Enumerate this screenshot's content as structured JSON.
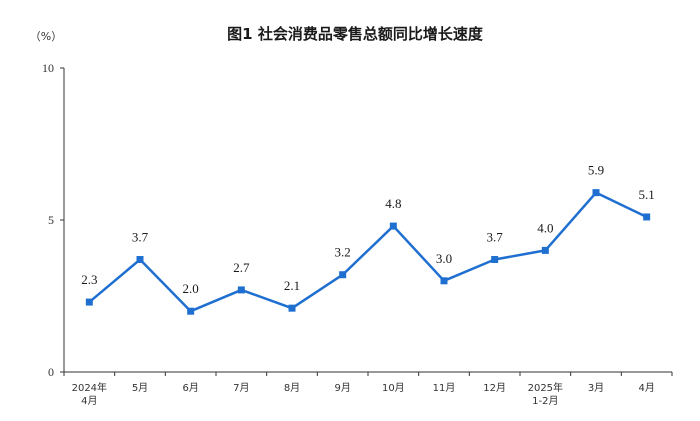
{
  "chart_data": {
    "type": "line",
    "title": "图1  社会消费品零售总额同比增长速度",
    "ylabel": "（%）",
    "xlabel": "",
    "ylim": [
      0,
      10
    ],
    "yticks": [
      "0",
      "5",
      "10"
    ],
    "categories": [
      [
        "2024年",
        "4月"
      ],
      [
        "5月"
      ],
      [
        "6月"
      ],
      [
        "7月"
      ],
      [
        "8月"
      ],
      [
        "9月"
      ],
      [
        "10月"
      ],
      [
        "11月"
      ],
      [
        "12月"
      ],
      [
        "2025年",
        "1-2月"
      ],
      [
        "3月"
      ],
      [
        "4月"
      ]
    ],
    "series": [
      {
        "values": [
          2.3,
          3.7,
          2.0,
          2.7,
          2.1,
          3.2,
          4.8,
          3.0,
          3.7,
          4.0,
          5.9,
          5.1
        ],
        "labels": [
          "2.3",
          "3.7",
          "2.0",
          "2.7",
          "2.1",
          "3.2",
          "4.8",
          "3.0",
          "3.7",
          "4.0",
          "5.9",
          "5.1"
        ],
        "color": "#1f6fd1"
      }
    ],
    "grid": false,
    "legend": "none"
  }
}
